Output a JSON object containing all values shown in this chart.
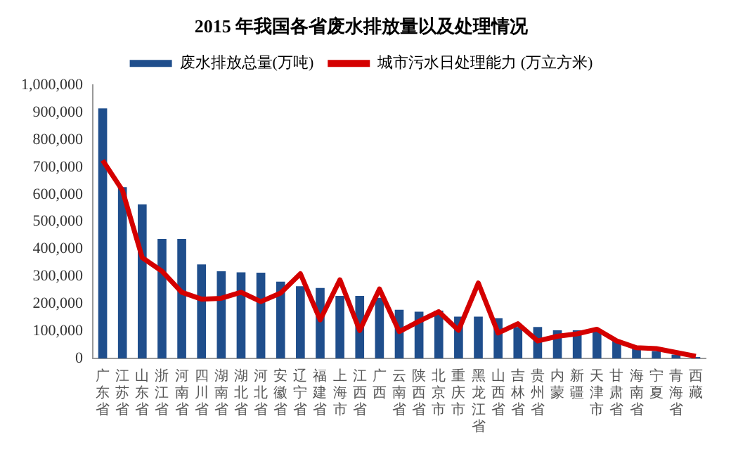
{
  "chart_data": {
    "type": "bar",
    "title": "2015 年我国各省废水排放量以及处理情况",
    "categories": [
      "广东省",
      "江苏省",
      "山东省",
      "浙江省",
      "河南省",
      "四川省",
      "湖南省",
      "湖北省",
      "河北省",
      "安徽省",
      "辽宁省",
      "福建省",
      "上海市",
      "江西省",
      "广西",
      "云南省",
      "陕西省",
      "北京市",
      "重庆市",
      "黑龙江省",
      "山西省",
      "吉林省",
      "贵州省",
      "内蒙",
      "新疆",
      "天津市",
      "甘肃省",
      "海南省",
      "宁夏",
      "青海省",
      "西藏"
    ],
    "series": [
      {
        "name": "废水排放总量(万吨)",
        "color": "#1f4e8c",
        "values": [
          915000,
          627000,
          564000,
          437000,
          437000,
          344000,
          319000,
          315000,
          314000,
          281000,
          264000,
          258000,
          229000,
          229000,
          222000,
          178000,
          171000,
          175000,
          153000,
          153000,
          147000,
          115000,
          115000,
          103000,
          103000,
          107000,
          64000,
          39000,
          27000,
          14000,
          5000
        ]
      },
      {
        "name": "城市污水日处理能力 (万立方米)",
        "type": "line",
        "color": "#d40000",
        "values": [
          725000,
          615000,
          369000,
          319000,
          242000,
          217000,
          220000,
          242000,
          208000,
          239000,
          310000,
          141000,
          288000,
          102000,
          254000,
          98000,
          136000,
          171000,
          103000,
          276000,
          93000,
          127000,
          64000,
          81000,
          90000,
          107000,
          64000,
          39000,
          36000,
          22000,
          8000
        ]
      }
    ],
    "ylim": [
      0,
      1000000
    ],
    "yticks": [
      0,
      {
        "value": 100000,
        "label": "100,000"
      },
      {
        "value": 200000,
        "label": "200,000"
      },
      {
        "value": 300000,
        "label": "300,000"
      },
      {
        "value": 400000,
        "label": "400,000"
      },
      {
        "value": 500000,
        "label": "500,000"
      },
      {
        "value": 600000,
        "label": "600,000"
      },
      {
        "value": 700000,
        "label": "700,000"
      },
      {
        "value": 800000,
        "label": "800,000"
      },
      {
        "value": 900000,
        "label": "900,000"
      },
      {
        "value": 1000000,
        "label": "1,000,000"
      }
    ],
    "grid": false,
    "legend": "top",
    "marker": "none",
    "line_style": "solid"
  }
}
